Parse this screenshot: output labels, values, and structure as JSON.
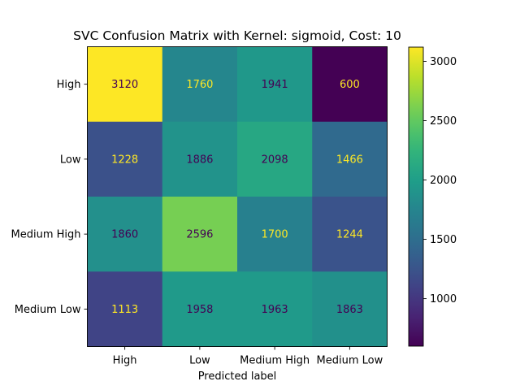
{
  "chart_data": {
    "type": "heatmap",
    "title": "SVC Confusion Matrix with Kernel: sigmoid, Cost: 10",
    "xlabel": "Predicted label",
    "ylabel": "",
    "x_categories": [
      "High",
      "Low",
      "Medium High",
      "Medium Low"
    ],
    "y_categories": [
      "High",
      "Low",
      "Medium High",
      "Medium Low"
    ],
    "values": [
      [
        3120,
        1760,
        1941,
        600
      ],
      [
        1228,
        1886,
        2098,
        1466
      ],
      [
        1860,
        2596,
        1700,
        1244
      ],
      [
        1113,
        1958,
        1963,
        1863
      ]
    ],
    "colormap": "viridis",
    "value_range": [
      600,
      3120
    ],
    "colorbar_ticks": [
      1000,
      1500,
      2000,
      2500,
      3000
    ],
    "text_colors": {
      "on_dark": "#fde725",
      "on_light": "#440154"
    }
  }
}
